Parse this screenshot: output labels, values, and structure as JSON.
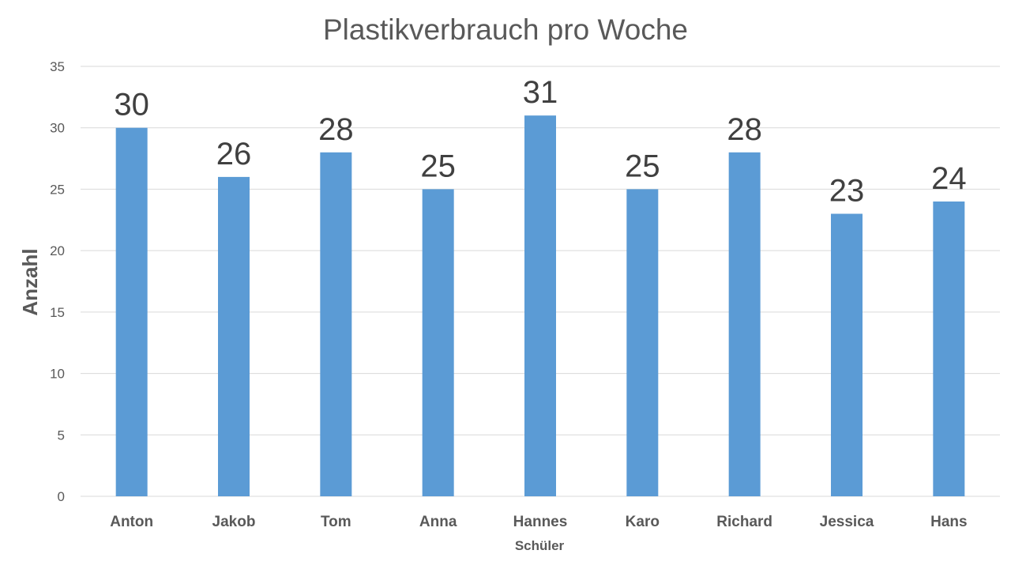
{
  "chart_data": {
    "type": "bar",
    "title": "Plastikverbrauch pro Woche",
    "xlabel": "Schüler",
    "ylabel": "Anzahl",
    "categories": [
      "Anton",
      "Jakob",
      "Tom",
      "Anna",
      "Hannes",
      "Karo",
      "Richard",
      "Jessica",
      "Hans"
    ],
    "values": [
      30,
      26,
      28,
      25,
      31,
      25,
      28,
      23,
      24
    ],
    "ylim": [
      0,
      35
    ],
    "yticks": [
      0,
      5,
      10,
      15,
      20,
      25,
      30,
      35
    ],
    "grid": true,
    "legend": "none",
    "data_labels": true,
    "bar_color": "#5b9bd5"
  }
}
